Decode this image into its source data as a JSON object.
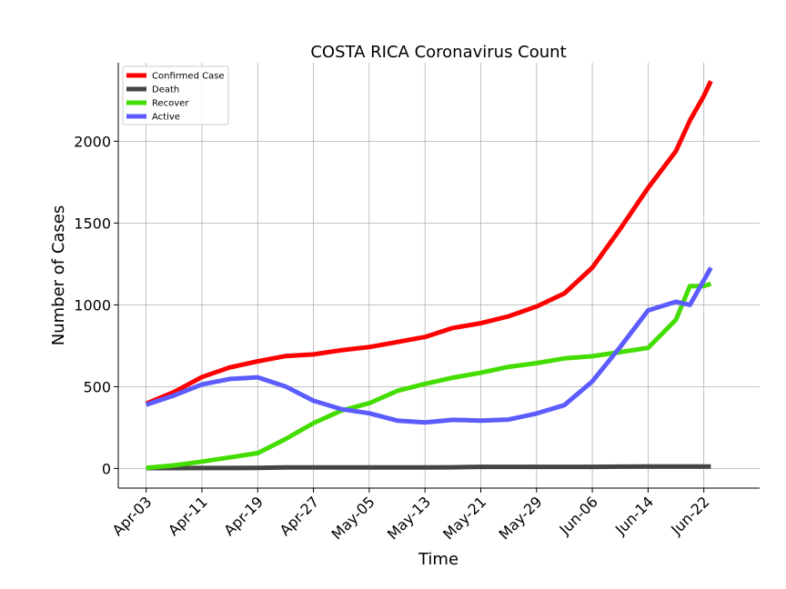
{
  "chart_data": {
    "type": "line",
    "title": "COSTA RICA Coronavirus Count",
    "xlabel": "Time",
    "ylabel": "Number of Cases",
    "x_ticks": [
      "Apr-03",
      "Apr-11",
      "Apr-19",
      "Apr-27",
      "May-05",
      "May-13",
      "May-21",
      "May-29",
      "Jun-06",
      "Jun-14",
      "Jun-22"
    ],
    "y_ticks": [
      "0",
      "500",
      "1000",
      "1500",
      "2000"
    ],
    "xlim": [
      "2020-03-30",
      "2020-06-30"
    ],
    "ylim": [
      -120,
      2480
    ],
    "grid": true,
    "legend_position": "top-left",
    "x": [
      "2020-04-03",
      "2020-04-07",
      "2020-04-11",
      "2020-04-15",
      "2020-04-19",
      "2020-04-23",
      "2020-04-27",
      "2020-05-01",
      "2020-05-05",
      "2020-05-09",
      "2020-05-13",
      "2020-05-17",
      "2020-05-21",
      "2020-05-25",
      "2020-05-29",
      "2020-06-02",
      "2020-06-06",
      "2020-06-10",
      "2020-06-14",
      "2020-06-18",
      "2020-06-20",
      "2020-06-22",
      "2020-06-23"
    ],
    "series": [
      {
        "name": "Confirmed Case",
        "color": "#ff0000",
        "values": [
          396,
          467,
          559,
          618,
          655,
          687,
          697,
          723,
          742,
          773,
          804,
          859,
          888,
          930,
          990,
          1070,
          1228,
          1464,
          1715,
          1940,
          2127,
          2277,
          2368
        ]
      },
      {
        "name": "Death",
        "color": "#444444",
        "values": [
          2,
          2,
          3,
          3,
          4,
          6,
          6,
          6,
          6,
          6,
          6,
          7,
          10,
          10,
          10,
          10,
          10,
          11,
          12,
          12,
          12,
          12,
          12
        ]
      },
      {
        "name": "Recover",
        "color": "#44dd00",
        "values": [
          4,
          19,
          42,
          68,
          94,
          180,
          277,
          354,
          399,
          474,
          517,
          555,
          585,
          621,
          644,
          673,
          686,
          711,
          737,
          909,
          1115,
          1115,
          1129
        ]
      },
      {
        "name": "Active",
        "color": "#5c5cff",
        "values": [
          390,
          446,
          514,
          547,
          557,
          501,
          414,
          363,
          337,
          293,
          281,
          297,
          293,
          299,
          336,
          387,
          532,
          742,
          966,
          1019,
          1000,
          1150,
          1227
        ]
      }
    ]
  }
}
